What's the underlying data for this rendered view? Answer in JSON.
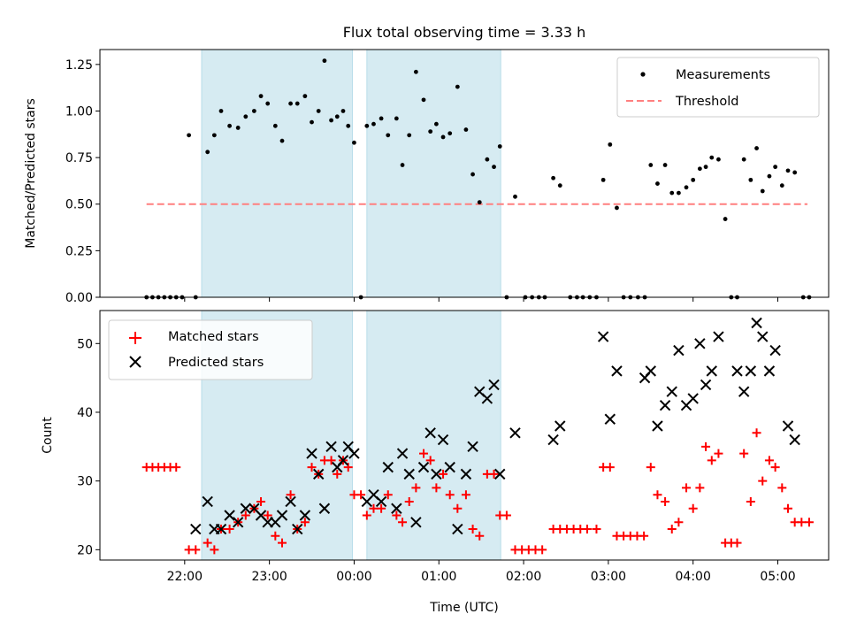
{
  "chart_data": [
    {
      "type": "scatter",
      "title": "Flux total observing time = 3.33 h",
      "ylabel": "Matched/Predicted stars",
      "ylim": [
        0,
        1.33
      ],
      "yticks": [
        "0.00",
        "0.25",
        "0.50",
        "0.75",
        "1.00",
        "1.25"
      ],
      "ytick_values": [
        0,
        0.25,
        0.5,
        0.75,
        1.0,
        1.25
      ],
      "threshold": 0.5,
      "threshold_x": [
        21.55,
        29.35
      ],
      "legend": [
        "Measurements",
        "Threshold"
      ],
      "observing_windows": [
        [
          22.2,
          23.98
        ],
        [
          24.15,
          25.73
        ]
      ],
      "series": [
        {
          "name": "Measurements",
          "color": "#000000",
          "points": [
            [
              21.55,
              0.0
            ],
            [
              21.62,
              0.0
            ],
            [
              21.69,
              0.0
            ],
            [
              21.76,
              0.0
            ],
            [
              21.83,
              0.0
            ],
            [
              21.9,
              0.0
            ],
            [
              21.97,
              0.0
            ],
            [
              22.05,
              0.87
            ],
            [
              22.13,
              0.0
            ],
            [
              22.27,
              0.78
            ],
            [
              22.35,
              0.87
            ],
            [
              22.43,
              1.0
            ],
            [
              22.53,
              0.92
            ],
            [
              22.63,
              0.91
            ],
            [
              22.72,
              0.97
            ],
            [
              22.82,
              1.0
            ],
            [
              22.9,
              1.08
            ],
            [
              22.98,
              1.04
            ],
            [
              23.07,
              0.92
            ],
            [
              23.15,
              0.84
            ],
            [
              23.25,
              1.04
            ],
            [
              23.33,
              1.04
            ],
            [
              23.42,
              1.08
            ],
            [
              23.5,
              0.94
            ],
            [
              23.58,
              1.0
            ],
            [
              23.65,
              1.27
            ],
            [
              23.73,
              0.95
            ],
            [
              23.8,
              0.97
            ],
            [
              23.87,
              1.0
            ],
            [
              23.93,
              0.92
            ],
            [
              24.0,
              0.83
            ],
            [
              24.08,
              0.0
            ],
            [
              24.15,
              0.92
            ],
            [
              24.23,
              0.93
            ],
            [
              24.32,
              0.96
            ],
            [
              24.4,
              0.87
            ],
            [
              24.5,
              0.96
            ],
            [
              24.57,
              0.71
            ],
            [
              24.65,
              0.87
            ],
            [
              24.73,
              1.21
            ],
            [
              24.82,
              1.06
            ],
            [
              24.9,
              0.89
            ],
            [
              24.97,
              0.93
            ],
            [
              25.05,
              0.86
            ],
            [
              25.13,
              0.88
            ],
            [
              25.22,
              1.13
            ],
            [
              25.32,
              0.9
            ],
            [
              25.4,
              0.66
            ],
            [
              25.48,
              0.51
            ],
            [
              25.57,
              0.74
            ],
            [
              25.65,
              0.7
            ],
            [
              25.72,
              0.81
            ],
            [
              25.8,
              0.0
            ],
            [
              25.9,
              0.54
            ],
            [
              26.02,
              0.0
            ],
            [
              26.1,
              0.0
            ],
            [
              26.18,
              0.0
            ],
            [
              26.25,
              0.0
            ],
            [
              26.35,
              0.64
            ],
            [
              26.43,
              0.6
            ],
            [
              26.55,
              0.0
            ],
            [
              26.63,
              0.0
            ],
            [
              26.7,
              0.0
            ],
            [
              26.78,
              0.0
            ],
            [
              26.86,
              0.0
            ],
            [
              26.94,
              0.63
            ],
            [
              27.02,
              0.82
            ],
            [
              27.1,
              0.48
            ],
            [
              27.18,
              0.0
            ],
            [
              27.26,
              0.0
            ],
            [
              27.35,
              0.0
            ],
            [
              27.43,
              0.0
            ],
            [
              27.5,
              0.71
            ],
            [
              27.58,
              0.61
            ],
            [
              27.67,
              0.71
            ],
            [
              27.75,
              0.56
            ],
            [
              27.83,
              0.56
            ],
            [
              27.92,
              0.59
            ],
            [
              28.0,
              0.63
            ],
            [
              28.08,
              0.69
            ],
            [
              28.15,
              0.7
            ],
            [
              28.22,
              0.75
            ],
            [
              28.3,
              0.74
            ],
            [
              28.38,
              0.42
            ],
            [
              28.45,
              0.0
            ],
            [
              28.52,
              0.0
            ],
            [
              28.6,
              0.74
            ],
            [
              28.68,
              0.63
            ],
            [
              28.75,
              0.8
            ],
            [
              28.82,
              0.57
            ],
            [
              28.9,
              0.65
            ],
            [
              28.97,
              0.7
            ],
            [
              29.05,
              0.6
            ],
            [
              29.12,
              0.68
            ],
            [
              29.2,
              0.67
            ],
            [
              29.3,
              0.0
            ],
            [
              29.37,
              0.0
            ]
          ]
        }
      ]
    },
    {
      "type": "scatter",
      "xlabel": "Time (UTC)",
      "ylabel": "Count",
      "xlim": [
        21.0,
        29.6
      ],
      "ylim": [
        18.5,
        54.8
      ],
      "xticks": [
        "22:00",
        "23:00",
        "00:00",
        "01:00",
        "02:00",
        "03:00",
        "04:00",
        "05:00"
      ],
      "xtick_values": [
        22,
        23,
        24,
        25,
        26,
        27,
        28,
        29
      ],
      "yticks": [
        "20",
        "30",
        "40",
        "50"
      ],
      "ytick_values": [
        20,
        30,
        40,
        50
      ],
      "legend": [
        "Matched stars",
        "Predicted stars"
      ],
      "observing_windows": [
        [
          22.2,
          23.98
        ],
        [
          24.15,
          25.73
        ]
      ],
      "series": [
        {
          "name": "Matched stars",
          "color": "#ff0000",
          "marker": "+",
          "points": [
            [
              21.55,
              32
            ],
            [
              21.62,
              32
            ],
            [
              21.69,
              32
            ],
            [
              21.76,
              32
            ],
            [
              21.83,
              32
            ],
            [
              21.9,
              32
            ],
            [
              22.05,
              20
            ],
            [
              22.13,
              20
            ],
            [
              22.27,
              21
            ],
            [
              22.35,
              20
            ],
            [
              22.43,
              23
            ],
            [
              22.53,
              23
            ],
            [
              22.63,
              24
            ],
            [
              22.72,
              25
            ],
            [
              22.82,
              26
            ],
            [
              22.9,
              27
            ],
            [
              22.98,
              25
            ],
            [
              23.07,
              22
            ],
            [
              23.15,
              21
            ],
            [
              23.25,
              28
            ],
            [
              23.33,
              23
            ],
            [
              23.42,
              24
            ],
            [
              23.5,
              32
            ],
            [
              23.58,
              31
            ],
            [
              23.65,
              33
            ],
            [
              23.73,
              33
            ],
            [
              23.8,
              31
            ],
            [
              23.87,
              33
            ],
            [
              23.93,
              32
            ],
            [
              24.0,
              28
            ],
            [
              24.08,
              28
            ],
            [
              24.15,
              25
            ],
            [
              24.23,
              26
            ],
            [
              24.32,
              26
            ],
            [
              24.4,
              28
            ],
            [
              24.5,
              25
            ],
            [
              24.57,
              24
            ],
            [
              24.65,
              27
            ],
            [
              24.73,
              29
            ],
            [
              24.82,
              34
            ],
            [
              24.9,
              33
            ],
            [
              24.97,
              29
            ],
            [
              25.05,
              31
            ],
            [
              25.13,
              28
            ],
            [
              25.22,
              26
            ],
            [
              25.32,
              28
            ],
            [
              25.4,
              23
            ],
            [
              25.48,
              22
            ],
            [
              25.57,
              31
            ],
            [
              25.65,
              31
            ],
            [
              25.72,
              25
            ],
            [
              25.8,
              25
            ],
            [
              25.9,
              20
            ],
            [
              25.98,
              20
            ],
            [
              26.06,
              20
            ],
            [
              26.14,
              20
            ],
            [
              26.22,
              20
            ],
            [
              26.35,
              23
            ],
            [
              26.43,
              23
            ],
            [
              26.51,
              23
            ],
            [
              26.59,
              23
            ],
            [
              26.67,
              23
            ],
            [
              26.75,
              23
            ],
            [
              26.86,
              23
            ],
            [
              26.94,
              32
            ],
            [
              27.02,
              32
            ],
            [
              27.1,
              22
            ],
            [
              27.18,
              22
            ],
            [
              27.26,
              22
            ],
            [
              27.34,
              22
            ],
            [
              27.42,
              22
            ],
            [
              27.5,
              32
            ],
            [
              27.58,
              28
            ],
            [
              27.67,
              27
            ],
            [
              27.75,
              23
            ],
            [
              27.83,
              24
            ],
            [
              27.92,
              29
            ],
            [
              28.0,
              26
            ],
            [
              28.08,
              29
            ],
            [
              28.15,
              35
            ],
            [
              28.22,
              33
            ],
            [
              28.3,
              34
            ],
            [
              28.38,
              21
            ],
            [
              28.45,
              21
            ],
            [
              28.52,
              21
            ],
            [
              28.6,
              34
            ],
            [
              28.68,
              27
            ],
            [
              28.75,
              37
            ],
            [
              28.82,
              30
            ],
            [
              28.9,
              33
            ],
            [
              28.97,
              32
            ],
            [
              29.05,
              29
            ],
            [
              29.12,
              26
            ],
            [
              29.2,
              24
            ],
            [
              29.28,
              24
            ],
            [
              29.37,
              24
            ]
          ]
        },
        {
          "name": "Predicted stars",
          "color": "#000000",
          "marker": "x",
          "points": [
            [
              22.13,
              23
            ],
            [
              22.27,
              27
            ],
            [
              22.35,
              23
            ],
            [
              22.43,
              23
            ],
            [
              22.53,
              25
            ],
            [
              22.63,
              24
            ],
            [
              22.72,
              26
            ],
            [
              22.82,
              26
            ],
            [
              22.9,
              25
            ],
            [
              22.98,
              24
            ],
            [
              23.07,
              24
            ],
            [
              23.15,
              25
            ],
            [
              23.25,
              27
            ],
            [
              23.33,
              23
            ],
            [
              23.42,
              25
            ],
            [
              23.5,
              34
            ],
            [
              23.58,
              31
            ],
            [
              23.65,
              26
            ],
            [
              23.73,
              35
            ],
            [
              23.8,
              32
            ],
            [
              23.87,
              33
            ],
            [
              23.93,
              35
            ],
            [
              24.0,
              34
            ],
            [
              24.15,
              27
            ],
            [
              24.23,
              28
            ],
            [
              24.32,
              27
            ],
            [
              24.4,
              32
            ],
            [
              24.5,
              26
            ],
            [
              24.57,
              34
            ],
            [
              24.65,
              31
            ],
            [
              24.73,
              24
            ],
            [
              24.82,
              32
            ],
            [
              24.9,
              37
            ],
            [
              24.97,
              31
            ],
            [
              25.05,
              36
            ],
            [
              25.13,
              32
            ],
            [
              25.22,
              23
            ],
            [
              25.32,
              31
            ],
            [
              25.4,
              35
            ],
            [
              25.48,
              43
            ],
            [
              25.57,
              42
            ],
            [
              25.65,
              44
            ],
            [
              25.72,
              31
            ],
            [
              25.9,
              37
            ],
            [
              26.35,
              36
            ],
            [
              26.43,
              38
            ],
            [
              26.94,
              51
            ],
            [
              27.02,
              39
            ],
            [
              27.1,
              46
            ],
            [
              27.43,
              45
            ],
            [
              27.5,
              46
            ],
            [
              27.58,
              38
            ],
            [
              27.67,
              41
            ],
            [
              27.75,
              43
            ],
            [
              27.83,
              49
            ],
            [
              27.92,
              41
            ],
            [
              28.0,
              42
            ],
            [
              28.08,
              50
            ],
            [
              28.15,
              44
            ],
            [
              28.22,
              46
            ],
            [
              28.3,
              51
            ],
            [
              28.52,
              46
            ],
            [
              28.6,
              43
            ],
            [
              28.68,
              46
            ],
            [
              28.75,
              53
            ],
            [
              28.82,
              51
            ],
            [
              28.9,
              46
            ],
            [
              28.97,
              49
            ],
            [
              29.12,
              38
            ],
            [
              29.2,
              36
            ]
          ]
        }
      ]
    }
  ]
}
